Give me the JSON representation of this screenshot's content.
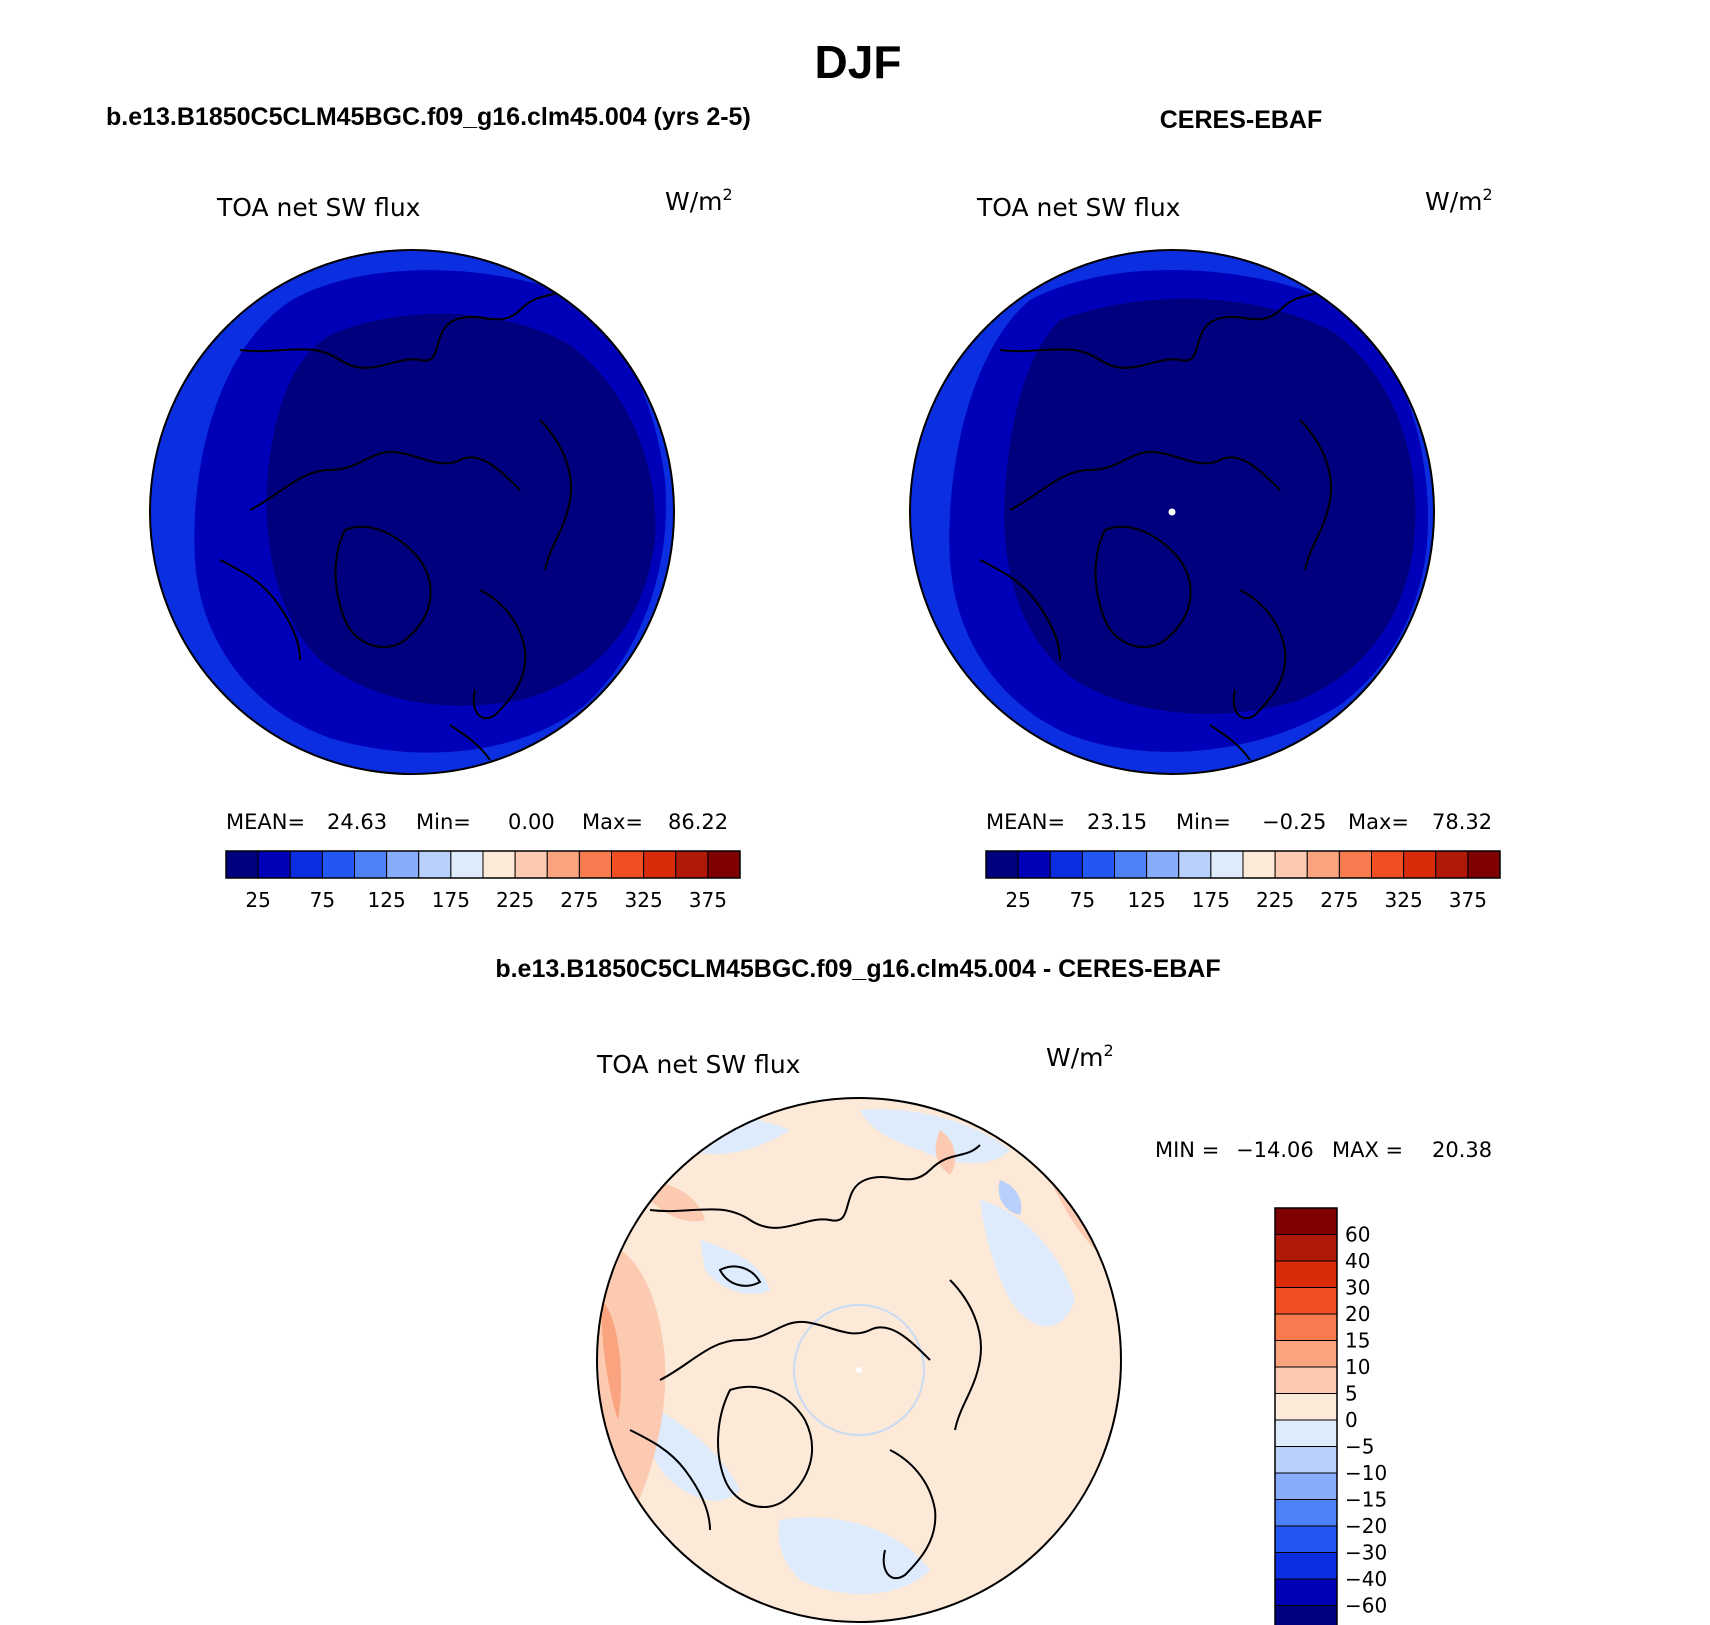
{
  "figure": {
    "title": "DJF",
    "variable_label": "TOA net SW flux",
    "units_prefix": "W/m",
    "units_exponent": "2"
  },
  "colors": {
    "abs_levels": [
      "#00007f",
      "#0000b8",
      "#0a2ee0",
      "#2357f5",
      "#4d82fb",
      "#86acfa",
      "#b8d0fb",
      "#ddebfd",
      "#fde9d8",
      "#fccab0",
      "#f9a47f",
      "#f77b4f",
      "#ef4f23",
      "#d72b0a",
      "#b01909",
      "#7e0000"
    ],
    "diff_levels": [
      "#00007f",
      "#0000b8",
      "#0a2ee0",
      "#2357f5",
      "#4d82fb",
      "#86acfa",
      "#b8d0fb",
      "#ddebfd",
      "#fde9d8",
      "#fccab0",
      "#f9a47f",
      "#f77b4f",
      "#ef4f23",
      "#d72b0a",
      "#b01909",
      "#7e0000"
    ]
  },
  "chart_data": [
    {
      "type": "heatmap",
      "projection": "polar stereographic (north pole)",
      "title": "b.e13.B1850C5CLM45BGC.f09_g16.clm45.004 (yrs 2-5)",
      "stats": {
        "mean_label": "MEAN=",
        "mean": "24.63",
        "min_label": "Min=",
        "min": "0.00",
        "max_label": "Max=",
        "max": "86.22"
      },
      "colorbar_levels": [
        0,
        25,
        50,
        75,
        100,
        125,
        150,
        175,
        200,
        225,
        250,
        275,
        300,
        325,
        350,
        375
      ],
      "colorbar_ticks": [
        "25",
        "75",
        "125",
        "175",
        "225",
        "275",
        "325",
        "375"
      ],
      "field_bands": [
        {
          "level_index": 0,
          "description": "high-latitude core near pole"
        },
        {
          "level_index": 1,
          "description": "ring around core"
        },
        {
          "level_index": 2,
          "description": "outer ring toward edge"
        }
      ]
    },
    {
      "type": "heatmap",
      "projection": "polar stereographic (north pole)",
      "title": "CERES-EBAF",
      "stats": {
        "mean_label": "MEAN=",
        "mean": "23.15",
        "min_label": "Min=",
        "min": "−0.25",
        "max_label": "Max=",
        "max": "78.32"
      },
      "colorbar_levels": [
        0,
        25,
        50,
        75,
        100,
        125,
        150,
        175,
        200,
        225,
        250,
        275,
        300,
        325,
        350,
        375
      ],
      "colorbar_ticks": [
        "25",
        "75",
        "125",
        "175",
        "225",
        "275",
        "325",
        "375"
      ],
      "field_bands": [
        {
          "level_index": 0,
          "description": "high-latitude core near pole"
        },
        {
          "level_index": 1,
          "description": "ring around core"
        },
        {
          "level_index": 2,
          "description": "outer ring toward edge"
        }
      ]
    },
    {
      "type": "heatmap",
      "projection": "polar stereographic (north pole)",
      "title": "b.e13.B1850C5CLM45BGC.f09_g16.clm45.004 - CERES-EBAF",
      "stats": {
        "min_label": "MIN =",
        "min": "−14.06",
        "max_label": "MAX =",
        "max": "20.38"
      },
      "colorbar_levels": [
        -60,
        -40,
        -30,
        -20,
        -15,
        -10,
        -5,
        0,
        5,
        10,
        15,
        20,
        30,
        40,
        60
      ],
      "colorbar_ticks": [
        "60",
        "40",
        "30",
        "20",
        "15",
        "10",
        "5",
        "0",
        "−5",
        "−10",
        "−15",
        "−20",
        "−30",
        "−40",
        "−60"
      ]
    }
  ]
}
